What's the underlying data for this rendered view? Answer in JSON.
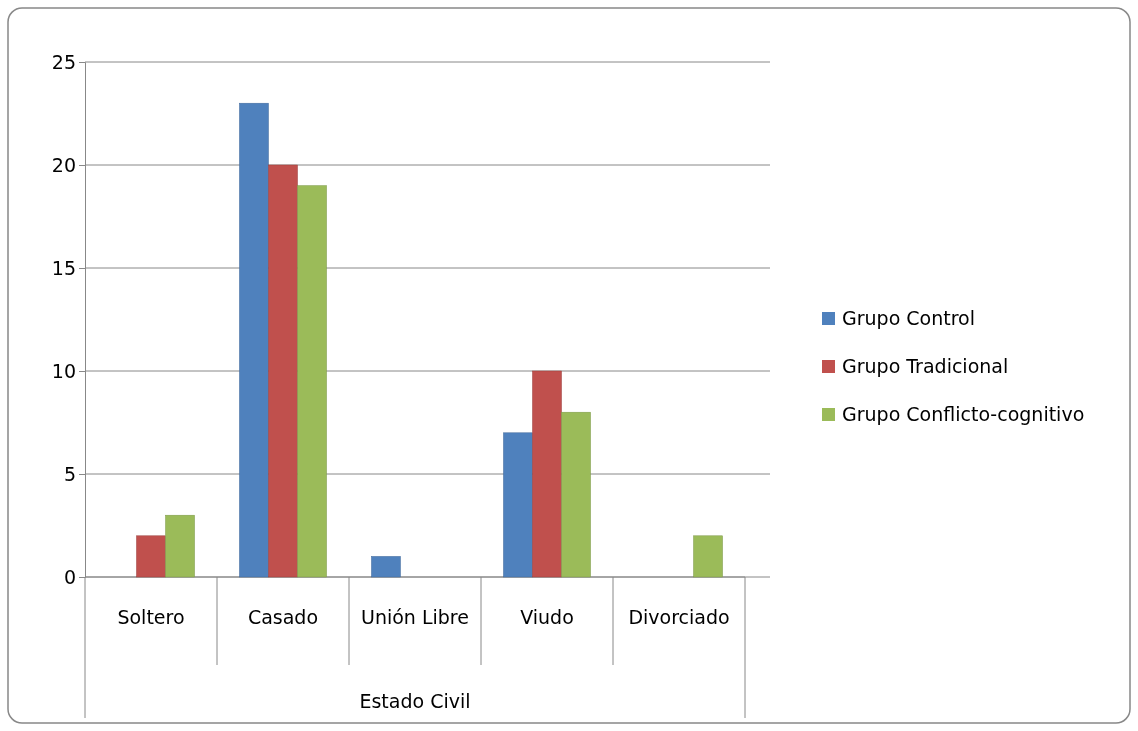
{
  "chart_data": {
    "type": "bar",
    "xlabel": "Estado Civil",
    "categories": [
      "Soltero",
      "Casado",
      "Unión Libre",
      "Viudo",
      "Divorciado"
    ],
    "series": [
      {
        "name": "Grupo Control",
        "color": "#4f81bd",
        "values": [
          0,
          23,
          1,
          7,
          0
        ]
      },
      {
        "name": "Grupo Tradicional",
        "color": "#c0504d",
        "values": [
          2,
          20,
          0,
          10,
          0
        ]
      },
      {
        "name": "Grupo Conflicto-cognitivo",
        "color": "#9bbb59",
        "values": [
          3,
          19,
          0,
          8,
          2
        ]
      }
    ],
    "ylim": [
      0,
      25
    ],
    "yticks": [
      0,
      5,
      10,
      15,
      20,
      25
    ],
    "grid": "y",
    "legend": "right"
  }
}
